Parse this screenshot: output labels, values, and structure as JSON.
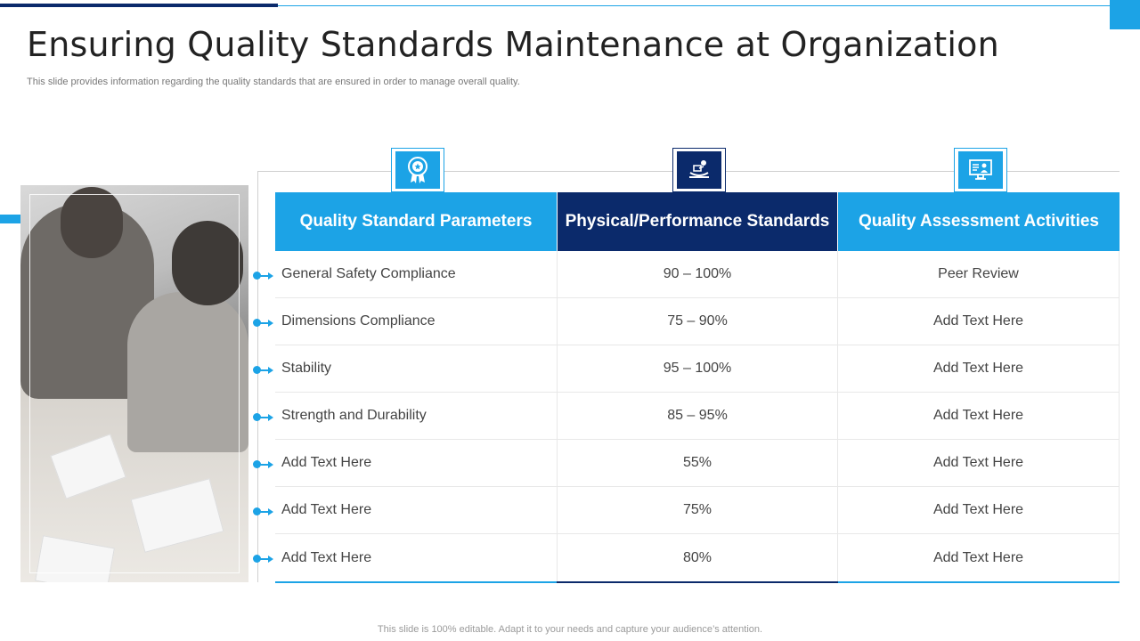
{
  "page": {
    "title": "Ensuring Quality Standards Maintenance at Organization",
    "subtitle": "This slide provides information regarding the quality standards that are ensured in order to manage overall quality.",
    "footer": "This slide is 100% editable. Adapt it to your needs and capture your audience’s attention."
  },
  "colors": {
    "accent_light": "#1ca3e6",
    "accent_dark": "#0b2a6b"
  },
  "icons": {
    "col1": "award-badge-icon",
    "col2": "performance-monitor-icon",
    "col3": "assessment-screen-icon"
  },
  "table": {
    "headers": [
      "Quality Standard Parameters",
      "Physical/Performance Standards",
      "Quality Assessment Activities"
    ],
    "rows": [
      [
        "General Safety Compliance",
        "90 – 100%",
        "Peer Review"
      ],
      [
        "Dimensions Compliance",
        "75 – 90%",
        "Add Text Here"
      ],
      [
        "Stability",
        "95 – 100%",
        "Add Text Here"
      ],
      [
        "Strength and Durability",
        "85 – 95%",
        "Add Text Here"
      ],
      [
        "Add Text Here",
        "55%",
        "Add Text Here"
      ],
      [
        "Add Text Here",
        "75%",
        "Add Text Here"
      ],
      [
        "Add Text Here",
        "80%",
        "Add Text Here"
      ]
    ]
  }
}
